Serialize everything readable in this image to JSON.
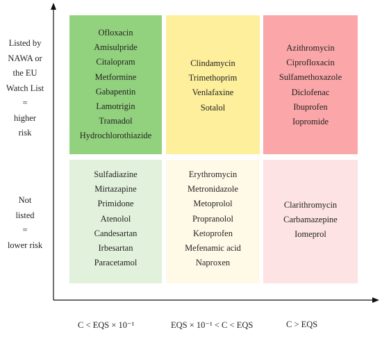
{
  "y_axis": {
    "high_label": [
      "Listed by",
      "NAWA or",
      "the EU",
      "Watch List",
      "=",
      "higher",
      "risk"
    ],
    "low_label": [
      "Not",
      "listed",
      "=",
      "lower risk"
    ]
  },
  "x_axis": {
    "labels": [
      "C < EQS × 10⁻¹",
      "EQS × 10⁻¹ < C < EQS",
      "C > EQS"
    ]
  },
  "cells": {
    "high_low": [
      "Ofloxacin",
      "Amisulpride",
      "Citalopram",
      "Metformine",
      "Gabapentin",
      "Lamotrigin",
      "Tramadol",
      "Hydrochlorothiazide"
    ],
    "high_mid": [
      "Clindamycin",
      "Trimethoprim",
      "Venlafaxine",
      "Sotalol"
    ],
    "high_high": [
      "Azithromycin",
      "Ciprofloxacin",
      "Sulfamethoxazole",
      "Diclofenac",
      "Ibuprofen",
      "Iopromide"
    ],
    "low_low": [
      "Sulfadiazine",
      "Mirtazapine",
      "Primidone",
      "Atenolol",
      "Candesartan",
      "Irbesartan",
      "Paracetamol"
    ],
    "low_mid": [
      "Erythromycin",
      "Metronidazole",
      "Metoprolol",
      "Propranolol",
      "Ketoprofen",
      "Mefenamic acid",
      "Naproxen"
    ],
    "low_high": [
      "Clarithromycin",
      "Carbamazepine",
      "Iomeprol"
    ]
  },
  "colors": {
    "high_low": "#92d17d",
    "high_mid": "#fdef9b",
    "high_high": "#fba6a8",
    "low_low": "#e2f1db",
    "low_mid": "#fffae8",
    "low_high": "#fde3e3",
    "axis": "#111111"
  }
}
